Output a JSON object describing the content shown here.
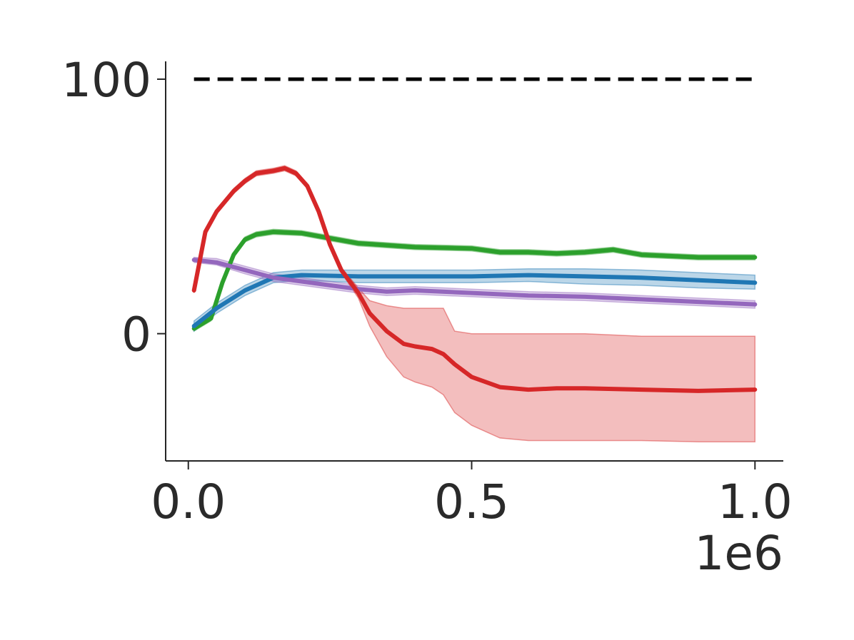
{
  "chart_data": {
    "type": "line",
    "title": "",
    "xlabel": "",
    "ylabel": "",
    "x_offset_label": "1e6",
    "xlim": [
      -0.04,
      1.05
    ],
    "ylim": [
      -50,
      107
    ],
    "x_ticks": [
      0.0,
      0.5,
      1.0
    ],
    "x_tick_labels": [
      "0.0",
      "0.5",
      "1.0"
    ],
    "y_ticks": [
      0,
      100
    ],
    "y_tick_labels": [
      "0",
      "100"
    ],
    "grid": false,
    "legend": "none",
    "reference_line": {
      "y": 100,
      "x_range": [
        0.01,
        1.0
      ],
      "style": "dashed",
      "color": "#000000"
    },
    "series": [
      {
        "color": "#2ca02c",
        "x": [
          0.01,
          0.04,
          0.06,
          0.08,
          0.1,
          0.12,
          0.15,
          0.2,
          0.25,
          0.3,
          0.4,
          0.5,
          0.55,
          0.6,
          0.65,
          0.7,
          0.75,
          0.8,
          0.85,
          0.9,
          0.95,
          1.0
        ],
        "y": [
          2,
          6,
          20,
          31,
          37,
          39,
          40,
          39.5,
          37.5,
          35.5,
          34,
          33.5,
          32,
          32,
          31.5,
          32,
          33,
          31,
          30.5,
          30,
          30,
          30
        ],
        "band_lower": [
          1,
          5,
          19,
          30,
          36,
          38,
          39,
          38.5,
          36.5,
          34.5,
          33,
          32.5,
          31,
          31,
          30.5,
          31,
          32,
          30,
          29.5,
          29,
          29,
          29
        ],
        "band_upper": [
          3,
          7,
          21,
          32,
          38,
          40,
          41,
          40.5,
          38.5,
          36.5,
          35,
          34.5,
          33,
          33,
          32.5,
          33,
          34,
          32,
          31.5,
          31,
          31,
          31
        ]
      },
      {
        "color": "#1f77b4",
        "x": [
          0.01,
          0.05,
          0.1,
          0.15,
          0.2,
          0.3,
          0.4,
          0.5,
          0.6,
          0.7,
          0.8,
          0.9,
          1.0
        ],
        "y": [
          3,
          10,
          17,
          22,
          23,
          22.5,
          22.5,
          22.5,
          23,
          22.5,
          22,
          21,
          20
        ],
        "band_lower": [
          1,
          8,
          15,
          20,
          21,
          20,
          20,
          20,
          20.5,
          19.5,
          19,
          18,
          17.5
        ],
        "band_upper": [
          5,
          12,
          19,
          24,
          25,
          25,
          25,
          25,
          25.5,
          25.5,
          25,
          24,
          23
        ]
      },
      {
        "color": "#9467bd",
        "x": [
          0.01,
          0.05,
          0.1,
          0.15,
          0.2,
          0.25,
          0.3,
          0.35,
          0.4,
          0.5,
          0.6,
          0.7,
          0.8,
          0.9,
          1.0
        ],
        "y": [
          29,
          28,
          25,
          22,
          20.5,
          19,
          17.5,
          16.5,
          17,
          16,
          15,
          14.5,
          13.5,
          12.5,
          11.5
        ],
        "band_lower": [
          28,
          27,
          23.5,
          20.5,
          19,
          17.5,
          16,
          15,
          15.5,
          14.5,
          13.5,
          13,
          12,
          11,
          10
        ],
        "band_upper": [
          30,
          29.5,
          26.5,
          23.5,
          22,
          20.5,
          19,
          18,
          18.5,
          17.5,
          16.5,
          16,
          15,
          14,
          13
        ]
      },
      {
        "color": "#d62728",
        "x": [
          0.01,
          0.03,
          0.05,
          0.08,
          0.1,
          0.12,
          0.15,
          0.17,
          0.19,
          0.21,
          0.23,
          0.25,
          0.27,
          0.3,
          0.32,
          0.35,
          0.38,
          0.4,
          0.43,
          0.45,
          0.47,
          0.5,
          0.55,
          0.6,
          0.65,
          0.7,
          0.8,
          0.9,
          1.0
        ],
        "y": [
          17,
          40,
          48,
          56,
          60,
          63,
          64,
          65,
          63,
          58,
          48,
          35,
          25,
          16,
          8,
          1,
          -4,
          -5,
          -6,
          -8,
          -12,
          -17,
          -21,
          -22,
          -21.5,
          -21.5,
          -22,
          -22.5,
          -22
        ],
        "band_lower": [
          16,
          39,
          47,
          55,
          59,
          62,
          63,
          64,
          62,
          57,
          47,
          34,
          24,
          14,
          3,
          -9,
          -17,
          -19,
          -21,
          -24,
          -31,
          -36,
          -41,
          -42,
          -42,
          -42,
          -42,
          -42.5,
          -42.5
        ],
        "band_upper": [
          18,
          41,
          49,
          57,
          61,
          64,
          65,
          66,
          64,
          59,
          49,
          36,
          26,
          18,
          13,
          11,
          10,
          10,
          10,
          10,
          1,
          0,
          0,
          0,
          0,
          0,
          -1,
          -1,
          -1
        ]
      }
    ]
  }
}
